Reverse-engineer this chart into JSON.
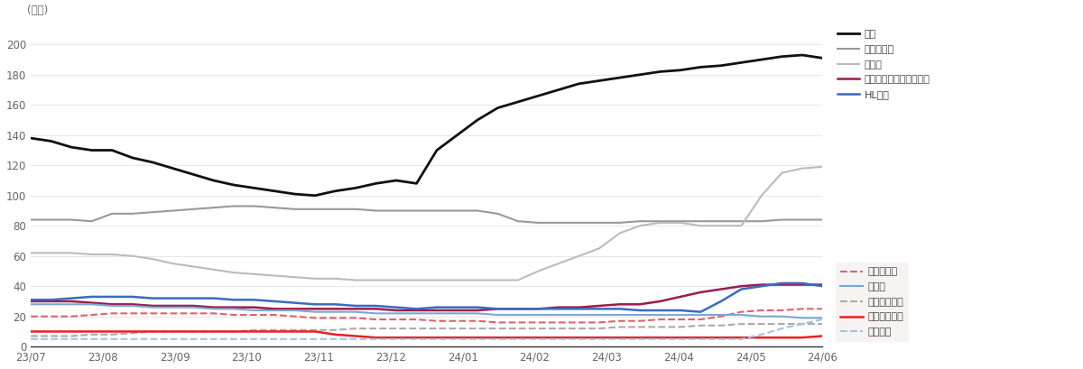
{
  "ylabel": "(만주)",
  "ylim": [
    0,
    210
  ],
  "yticks": [
    0,
    20,
    40,
    60,
    80,
    100,
    120,
    140,
    160,
    180,
    200
  ],
  "xtick_labels": [
    "23/07",
    "23/08",
    "23/09",
    "23/10",
    "23/11",
    "23/12",
    "24/01",
    "24/02",
    "24/03",
    "24/04",
    "24/05",
    "24/06"
  ],
  "background_color": "#ffffff",
  "legend_box_color": "#f0ecec",
  "series": [
    {
      "name": "기아",
      "color": "#111111",
      "linestyle": "solid",
      "linewidth": 2.0,
      "legend_bg": false,
      "data": [
        138,
        136,
        132,
        130,
        130,
        125,
        122,
        118,
        114,
        110,
        107,
        105,
        103,
        101,
        100,
        103,
        105,
        108,
        110,
        108,
        130,
        140,
        150,
        158,
        162,
        166,
        170,
        174,
        176,
        178,
        180,
        182,
        183,
        185,
        186,
        188,
        190,
        192,
        193,
        191
      ]
    },
    {
      "name": "한온시스템",
      "color": "#999999",
      "linestyle": "solid",
      "linewidth": 1.5,
      "legend_bg": false,
      "data": [
        84,
        84,
        84,
        83,
        88,
        88,
        89,
        90,
        91,
        92,
        93,
        93,
        92,
        91,
        91,
        91,
        91,
        90,
        90,
        90,
        90,
        90,
        90,
        88,
        83,
        82,
        82,
        82,
        82,
        82,
        83,
        83,
        83,
        83,
        83,
        83,
        83,
        84,
        84,
        84
      ]
    },
    {
      "name": "현대차",
      "color": "#bbbbbb",
      "linestyle": "solid",
      "linewidth": 1.5,
      "legend_bg": false,
      "data": [
        62,
        62,
        62,
        61,
        61,
        60,
        58,
        55,
        53,
        51,
        49,
        48,
        47,
        46,
        45,
        45,
        44,
        44,
        44,
        44,
        44,
        44,
        44,
        44,
        44,
        50,
        55,
        60,
        65,
        75,
        80,
        82,
        82,
        80,
        80,
        80,
        100,
        115,
        118,
        119
      ]
    },
    {
      "name": "한국타이어앤테크놀로지",
      "color": "#9b1c4b",
      "linestyle": "solid",
      "linewidth": 1.8,
      "legend_bg": false,
      "data": [
        30,
        30,
        30,
        29,
        28,
        28,
        27,
        27,
        27,
        26,
        26,
        26,
        25,
        25,
        25,
        25,
        25,
        25,
        24,
        24,
        24,
        24,
        24,
        25,
        25,
        25,
        26,
        26,
        27,
        28,
        28,
        30,
        33,
        36,
        38,
        40,
        41,
        41,
        41,
        41
      ]
    },
    {
      "name": "HL만도",
      "color": "#3a6bbf",
      "linestyle": "solid",
      "linewidth": 1.8,
      "legend_bg": false,
      "data": [
        31,
        31,
        32,
        33,
        33,
        33,
        32,
        32,
        32,
        32,
        31,
        31,
        30,
        29,
        28,
        28,
        27,
        27,
        26,
        25,
        26,
        26,
        26,
        25,
        25,
        25,
        25,
        25,
        25,
        25,
        24,
        24,
        24,
        23,
        30,
        38,
        40,
        42,
        42,
        40
      ]
    },
    {
      "name": "현대모비스",
      "color": "#e06070",
      "linestyle": "dashed",
      "linewidth": 1.5,
      "legend_bg": true,
      "data": [
        20,
        20,
        20,
        21,
        22,
        22,
        22,
        22,
        22,
        22,
        21,
        21,
        21,
        20,
        19,
        19,
        19,
        18,
        18,
        18,
        17,
        17,
        17,
        16,
        16,
        16,
        16,
        16,
        16,
        17,
        17,
        18,
        18,
        18,
        20,
        23,
        24,
        24,
        25,
        25
      ]
    },
    {
      "name": "에스엘",
      "color": "#7ba7d4",
      "linestyle": "solid",
      "linewidth": 1.5,
      "legend_bg": true,
      "data": [
        28,
        28,
        28,
        28,
        27,
        27,
        26,
        26,
        26,
        25,
        25,
        24,
        24,
        24,
        23,
        23,
        23,
        22,
        22,
        22,
        22,
        22,
        22,
        21,
        21,
        21,
        21,
        21,
        21,
        21,
        21,
        21,
        21,
        21,
        21,
        21,
        20,
        20,
        19,
        19
      ]
    },
    {
      "name": "현대오토에버",
      "color": "#aaaaaa",
      "linestyle": "dashed",
      "linewidth": 1.5,
      "legend_bg": true,
      "data": [
        7,
        7,
        7,
        8,
        8,
        9,
        10,
        10,
        10,
        10,
        10,
        11,
        11,
        11,
        11,
        11,
        12,
        12,
        12,
        12,
        12,
        12,
        12,
        12,
        12,
        12,
        12,
        12,
        12,
        13,
        13,
        13,
        13,
        14,
        14,
        15,
        15,
        15,
        15,
        15
      ]
    },
    {
      "name": "현대글로비스",
      "color": "#e82020",
      "linestyle": "solid",
      "linewidth": 1.8,
      "legend_bg": true,
      "data": [
        10,
        10,
        10,
        10,
        10,
        10,
        10,
        10,
        10,
        10,
        10,
        10,
        10,
        10,
        10,
        8,
        7,
        6,
        6,
        6,
        6,
        6,
        6,
        6,
        6,
        6,
        6,
        6,
        6,
        6,
        6,
        6,
        6,
        6,
        6,
        6,
        6,
        6,
        6,
        7
      ]
    },
    {
      "name": "현대위아",
      "color": "#a0c4e8",
      "linestyle": "dashed",
      "linewidth": 1.5,
      "legend_bg": true,
      "data": [
        5,
        5,
        5,
        5,
        5,
        5,
        5,
        5,
        5,
        5,
        5,
        5,
        5,
        5,
        5,
        5,
        5,
        5,
        5,
        5,
        5,
        5,
        5,
        5,
        5,
        5,
        5,
        5,
        5,
        5,
        5,
        5,
        5,
        5,
        5,
        5,
        8,
        12,
        15,
        18
      ]
    }
  ]
}
